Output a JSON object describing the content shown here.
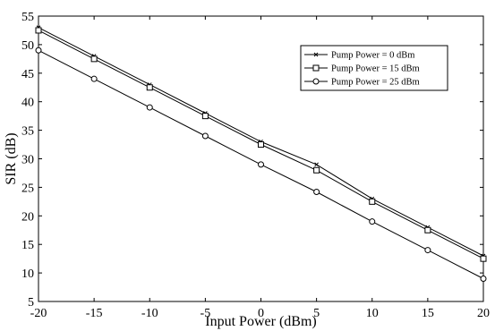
{
  "chart_data": {
    "type": "line",
    "xlabel": "Input Power (dBm)",
    "ylabel": "SIR (dB)",
    "xlim": [
      -20,
      20
    ],
    "ylim": [
      5,
      55
    ],
    "xticks": [
      -20,
      -15,
      -10,
      -5,
      0,
      5,
      10,
      15,
      20
    ],
    "yticks": [
      5,
      10,
      15,
      20,
      25,
      30,
      35,
      40,
      45,
      50,
      55
    ],
    "x": [
      -20,
      -15,
      -10,
      -5,
      0,
      5,
      10,
      15,
      20
    ],
    "series": [
      {
        "name": "Pump Power = 0 dBm",
        "marker": "x",
        "values": [
          53,
          48,
          43,
          38,
          33,
          29,
          23,
          18,
          13
        ]
      },
      {
        "name": "Pump Power = 15 dBm",
        "marker": "square",
        "values": [
          52.5,
          47.5,
          42.5,
          37.5,
          32.5,
          28,
          22.5,
          17.5,
          12.5
        ]
      },
      {
        "name": "Pump Power = 25 dBm",
        "marker": "circle",
        "values": [
          49,
          44,
          39,
          34,
          29,
          24.2,
          19,
          14,
          9
        ]
      }
    ],
    "legend_position": "top-right",
    "grid": false
  }
}
